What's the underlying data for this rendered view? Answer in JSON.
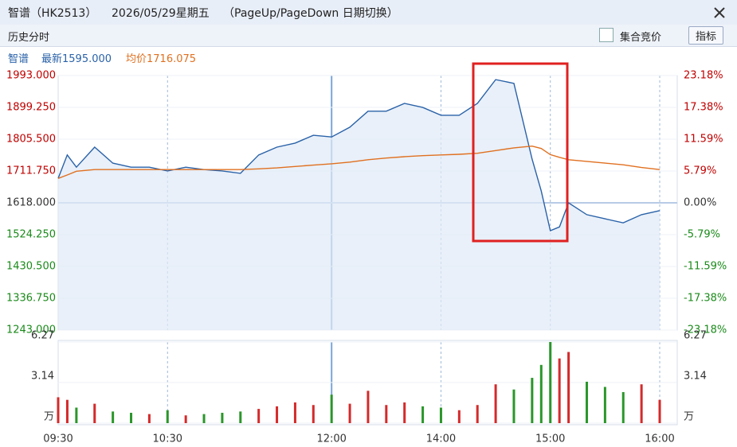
{
  "header": {
    "title": "智谱（HK2513）",
    "date": "2026/05/29星期五",
    "hint": "（PageUp/PageDown 日期切换）"
  },
  "toolbar": {
    "mode": "历史分时",
    "auction": "集合竞价",
    "indicator": "指标"
  },
  "info": {
    "name": "智谱",
    "latest": "最新1595.000",
    "average": "均价1716.075"
  },
  "chart_data": [
    {
      "type": "line",
      "x": [
        "09:30",
        "09:35",
        "09:40",
        "09:50",
        "10:00",
        "10:10",
        "10:20",
        "10:30",
        "10:40",
        "10:50",
        "11:00",
        "11:10",
        "11:20",
        "11:30",
        "11:40",
        "11:50",
        "12:00",
        "13:10",
        "13:20",
        "13:30",
        "13:40",
        "13:50",
        "14:00",
        "14:10",
        "14:20",
        "14:30",
        "14:40",
        "14:50",
        "14:55",
        "15:00",
        "15:05",
        "15:10",
        "15:20",
        "15:30",
        "15:40",
        "15:50",
        "16:00"
      ],
      "series": [
        {
          "color": "#2a62a8",
          "values": [
            1690,
            1759,
            1723,
            1782,
            1735,
            1723,
            1723,
            1712,
            1723,
            1716,
            1712,
            1705,
            1759,
            1782,
            1794,
            1817,
            1812,
            1841,
            1888,
            1888,
            1911,
            1899,
            1876,
            1876,
            1911,
            1981,
            1970,
            1747,
            1653,
            1536,
            1547,
            1618,
            1583,
            1571,
            1559,
            1583,
            1595
          ]
        },
        {
          "color": "#e07020",
          "values": [
            1690,
            1700,
            1711,
            1716,
            1716,
            1716,
            1716,
            1716,
            1716,
            1716,
            1716,
            1716,
            1718,
            1721,
            1725,
            1729,
            1733,
            1738,
            1745,
            1750,
            1754,
            1757,
            1759,
            1761,
            1764,
            1772,
            1780,
            1785,
            1778,
            1760,
            1752,
            1745,
            1740,
            1735,
            1730,
            1722,
            1716.075
          ]
        }
      ],
      "ylim": [
        1243,
        1993
      ],
      "yticks": [
        {
          "value": 1243,
          "label": "1243.000"
        },
        {
          "value": 1336.75,
          "label": "1336.750"
        },
        {
          "value": 1430.5,
          "label": "1430.500"
        },
        {
          "value": 1524.25,
          "label": "1524.250"
        },
        {
          "value": 1618,
          "label": "1618.000"
        },
        {
          "value": 1711.75,
          "label": "1711.750"
        },
        {
          "value": 1805.5,
          "label": "1805.500"
        },
        {
          "value": 1899.25,
          "label": "1899.250"
        },
        {
          "value": 1993,
          "label": "1993.000"
        }
      ],
      "y2lim": [
        -23.18,
        23.18
      ],
      "y2ticks": [
        {
          "value": -23.18,
          "label": "-23.18%"
        },
        {
          "value": -17.38,
          "label": "-17.38%"
        },
        {
          "value": -11.59,
          "label": "-11.59%"
        },
        {
          "value": -5.79,
          "label": "-5.79%"
        },
        {
          "value": 0,
          "label": "0.00%"
        },
        {
          "value": 5.79,
          "label": "5.79%"
        },
        {
          "value": 11.59,
          "label": "11.59%"
        },
        {
          "value": 17.38,
          "label": "17.38%"
        },
        {
          "value": 23.18,
          "label": "23.18%"
        }
      ],
      "grid": true
    },
    {
      "type": "bar",
      "x": [
        "09:30",
        "09:35",
        "09:40",
        "09:50",
        "10:00",
        "10:10",
        "10:20",
        "10:30",
        "10:40",
        "10:50",
        "11:00",
        "11:10",
        "11:20",
        "11:30",
        "11:40",
        "11:50",
        "12:00",
        "13:10",
        "13:20",
        "13:30",
        "13:40",
        "13:50",
        "14:00",
        "14:10",
        "14:20",
        "14:30",
        "14:40",
        "14:50",
        "14:55",
        "15:00",
        "15:05",
        "15:10",
        "15:20",
        "15:30",
        "15:40",
        "15:50",
        "16:00"
      ],
      "series": [
        {
          "color": "#d42a2a",
          "values": [
            2.0,
            1.8,
            null,
            1.5,
            null,
            null,
            0.7,
            null,
            0.6,
            null,
            null,
            null,
            1.1,
            1.3,
            1.6,
            1.4,
            null,
            1.5,
            2.5,
            1.4,
            1.6,
            null,
            null,
            1.0,
            1.4,
            3.0,
            null,
            null,
            null,
            null,
            5.0,
            5.5,
            null,
            null,
            null,
            3.0,
            1.8
          ]
        },
        {
          "color": "#2a962a",
          "values": [
            null,
            null,
            1.2,
            null,
            0.9,
            0.8,
            null,
            1.0,
            null,
            0.7,
            0.8,
            0.9,
            null,
            null,
            null,
            null,
            2.2,
            null,
            null,
            null,
            null,
            1.3,
            1.2,
            null,
            null,
            null,
            2.6,
            3.5,
            4.5,
            6.27,
            null,
            null,
            3.2,
            2.8,
            2.4,
            null,
            null
          ]
        }
      ],
      "ylim": [
        0,
        6.27
      ],
      "yticks": [
        {
          "value": 0,
          "label": "万"
        },
        3.14,
        6.27
      ],
      "y2lim": [
        0,
        6.27
      ],
      "y2ticks": [
        {
          "value": 0,
          "label": "万"
        },
        3.14,
        6.27
      ],
      "xticks": [
        "09:30",
        "10:30",
        "12:00",
        "14:00",
        "15:00",
        "16:00"
      ]
    }
  ]
}
